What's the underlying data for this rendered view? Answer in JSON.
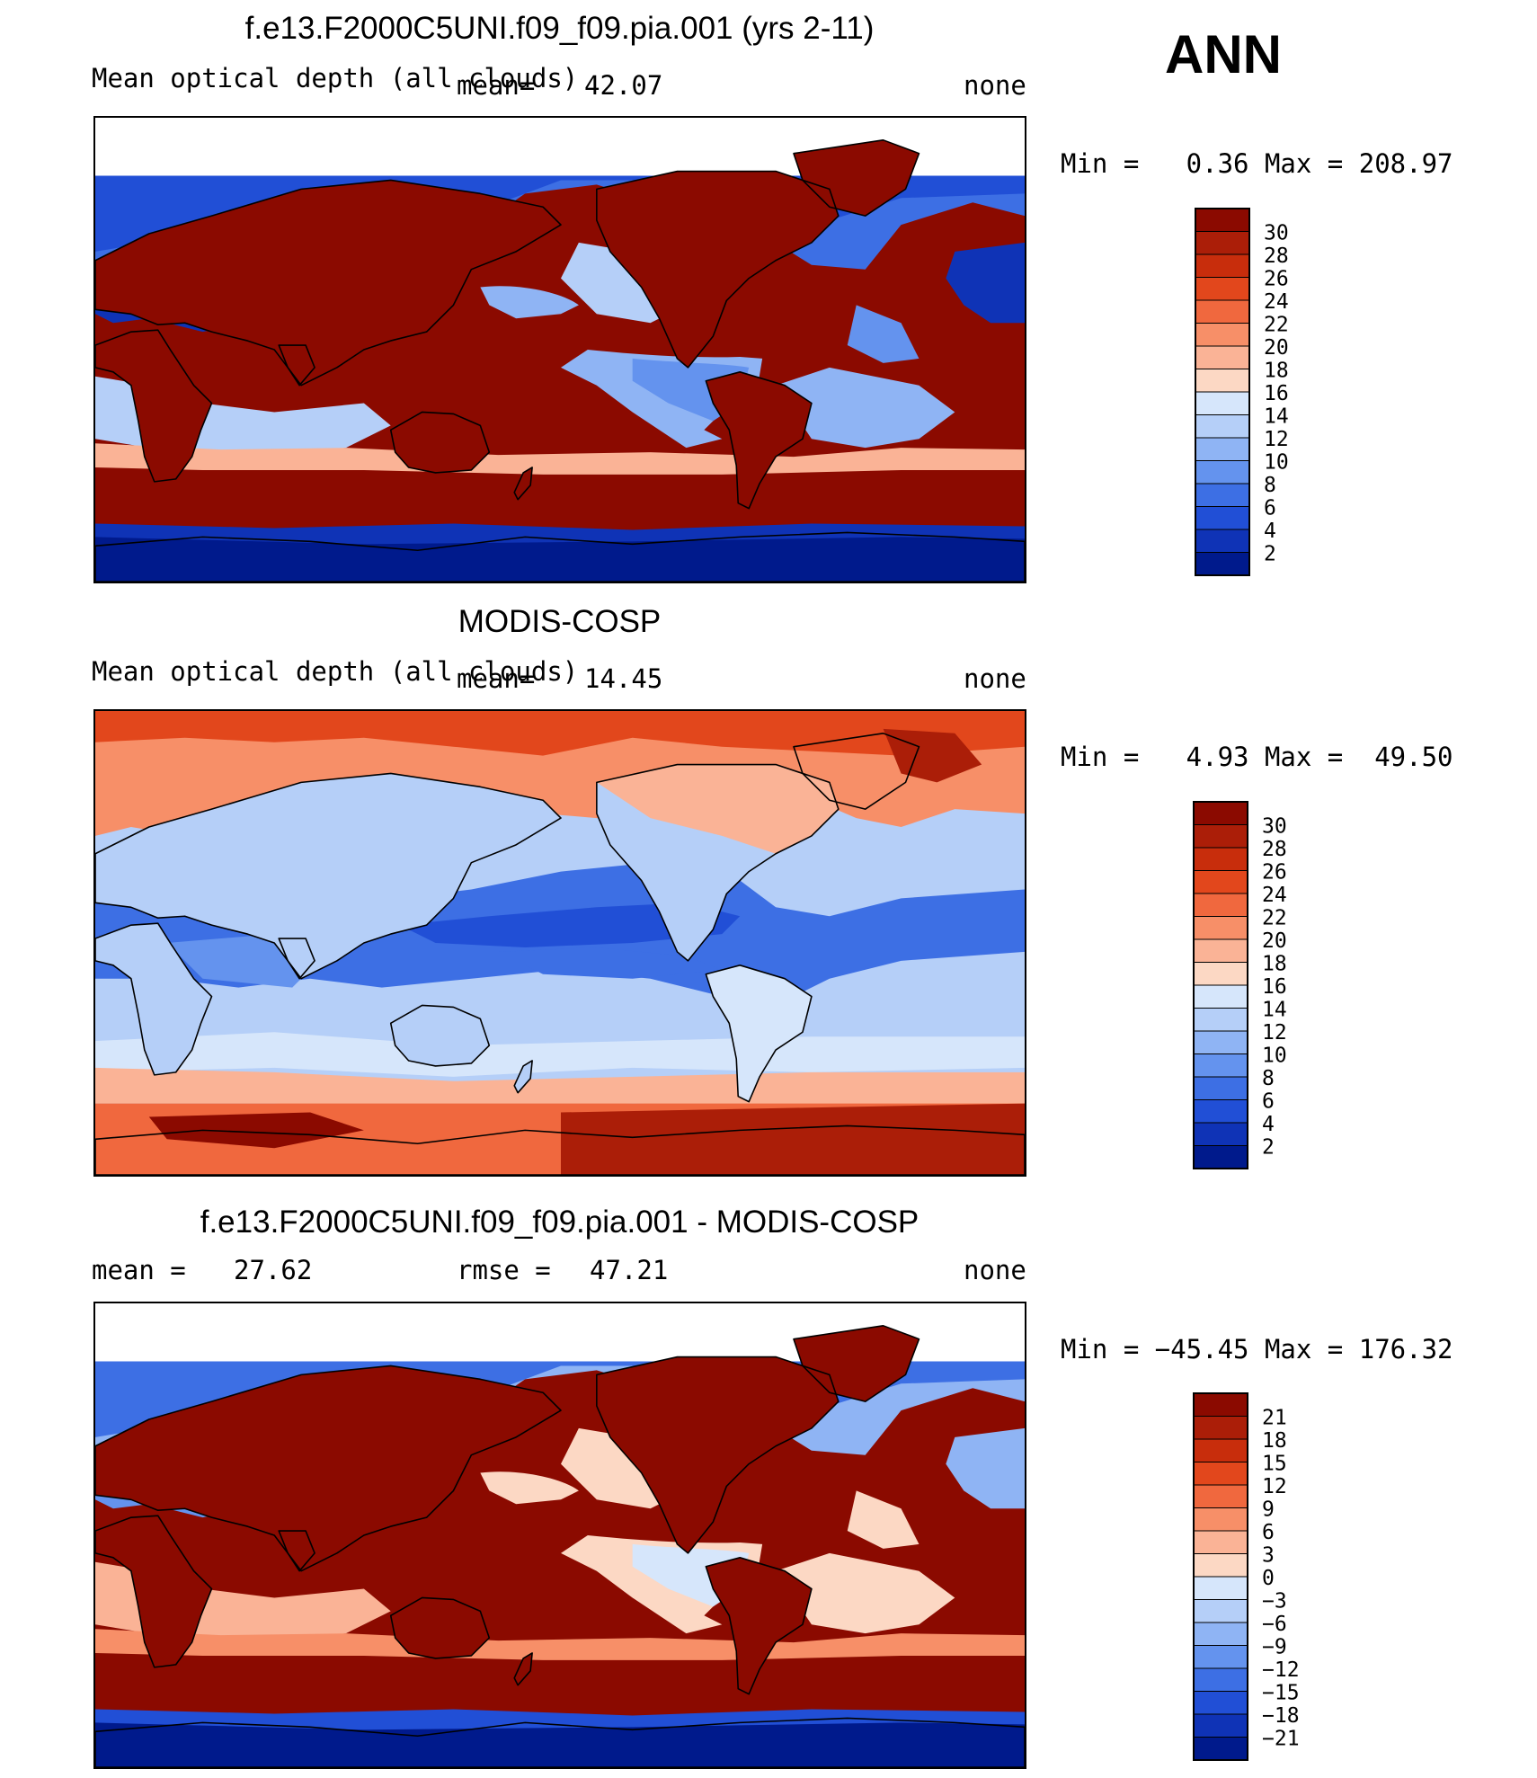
{
  "season_label": "ANN",
  "panels": [
    {
      "title": "f.e13.F2000C5UNI.f09_f09.pia.001 (yrs 2-11)",
      "left_label": "Mean optical depth (all clouds)",
      "mid_label": "mean=",
      "mid_value": "42.07",
      "right_label": "none",
      "minmax_text": "Min =   0.36 Max = 208.97",
      "colorbar_levels": [
        "30",
        "28",
        "26",
        "24",
        "22",
        "20",
        "18",
        "16",
        "14",
        "12",
        "10",
        "8",
        "6",
        "4",
        "2"
      ],
      "colors": [
        "#8b0a00",
        "#ab1e08",
        "#c82d0c",
        "#e2471c",
        "#f0683e",
        "#f78f68",
        "#fab396",
        "#fcd8c4",
        "#d6e6fb",
        "#b5cff8",
        "#8fb4f4",
        "#6493ee",
        "#3d6fe4",
        "#214fd6",
        "#0f33b6",
        "#001a8c"
      ]
    },
    {
      "title": "MODIS-COSP",
      "left_label": "Mean optical depth (all clouds)",
      "mid_label": "mean=",
      "mid_value": "14.45",
      "right_label": "none",
      "minmax_text": "Min =   4.93 Max =  49.50",
      "colorbar_levels": [
        "30",
        "28",
        "26",
        "24",
        "22",
        "20",
        "18",
        "16",
        "14",
        "12",
        "10",
        "8",
        "6",
        "4",
        "2"
      ],
      "colors": [
        "#8b0a00",
        "#ab1e08",
        "#c82d0c",
        "#e2471c",
        "#f0683e",
        "#f78f68",
        "#fab396",
        "#fcd8c4",
        "#d6e6fb",
        "#b5cff8",
        "#8fb4f4",
        "#6493ee",
        "#3d6fe4",
        "#214fd6",
        "#0f33b6",
        "#001a8c"
      ]
    },
    {
      "title": "f.e13.F2000C5UNI.f09_f09.pia.001 - MODIS-COSP",
      "left_label": "mean =",
      "left_value": "27.62",
      "mid_label": "rmse =",
      "mid_value": "47.21",
      "right_label": "none",
      "minmax_text": "Min = −45.45 Max = 176.32",
      "colorbar_levels": [
        "21",
        "18",
        "15",
        "12",
        "9",
        "6",
        "3",
        "0",
        "−3",
        "−6",
        "−9",
        "−12",
        "−15",
        "−18",
        "−21"
      ],
      "colors": [
        "#8b0a00",
        "#ab1e08",
        "#c82d0c",
        "#e2471c",
        "#f0683e",
        "#f78f68",
        "#fab396",
        "#fcd8c4",
        "#d6e6fb",
        "#b5cff8",
        "#8fb4f4",
        "#6493ee",
        "#3d6fe4",
        "#214fd6",
        "#0f33b6",
        "#001a8c"
      ]
    }
  ]
}
